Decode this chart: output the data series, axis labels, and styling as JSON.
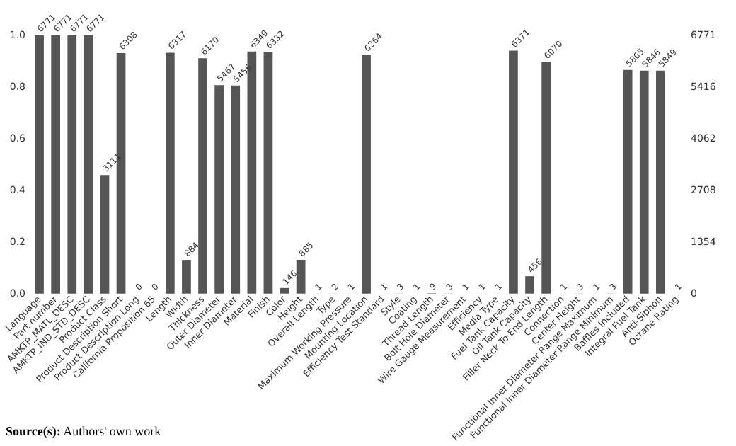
{
  "chart_data": {
    "type": "bar",
    "categories": [
      "Language",
      "Part number",
      "AMKTP_MATL_DESC",
      "AMKTP_IND_STD_DESC",
      "Product Class",
      "Product Description Short",
      "Product Description Long",
      "California Proposition 65",
      "Length",
      "Width",
      "Thickness",
      "Outer Diameter",
      "Inner Diameter",
      "Material",
      "Finish",
      "Color",
      "Height",
      "Overall Length",
      "Type",
      "Maximum Working Pressure",
      "Mounting Location",
      "Efficiency Test Standard",
      "Style",
      "Coating",
      "Thread Length",
      "Bolt Hole Diameter",
      "Wire Gauge Measurement",
      "Efficiency",
      "Media Type",
      "Fuel Tank Capacity",
      "Oil Tank Capacity",
      "Filler Neck To End Length",
      "Connection",
      "Center Height",
      "Functional Inner Diameter Range Maximum",
      "Functional Inner Diameter Range Minimum",
      "Baffles Included",
      "Integral Fuel Tank",
      "Anti-Siphon",
      "Octane Rating"
    ],
    "series": [
      {
        "color": "#555555",
        "axis": "y2",
        "values": [
          6771,
          6771,
          6771,
          6771,
          3111,
          6308,
          0,
          0,
          6317,
          884,
          6170,
          5467,
          5456,
          6349,
          6332,
          146,
          885,
          1,
          2,
          1,
          6264,
          1,
          3,
          1,
          9,
          3,
          1,
          1,
          1,
          6371,
          456,
          6070,
          1,
          3,
          1,
          3,
          5865,
          5846,
          5849,
          1
        ]
      }
    ],
    "data_labels": true,
    "ylim": [
      0,
      1
    ],
    "yticks": [
      {
        "value": 0,
        "label": "0.0"
      },
      0.2,
      0.4,
      0.6,
      0.8,
      {
        "value": 1,
        "label": "1.0"
      }
    ],
    "y2lim": [
      0,
      6771
    ],
    "y2ticks": [
      0,
      1354,
      2708,
      4062,
      5416,
      6771
    ],
    "grid": false,
    "annotations": [
      "Source(s): Authors' own work"
    ]
  }
}
